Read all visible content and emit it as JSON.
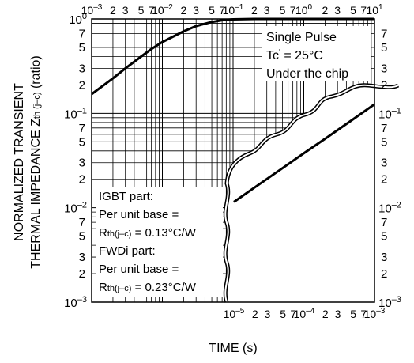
{
  "chart_data": {
    "type": "line",
    "title": "",
    "xlabel": "TIME (s)",
    "ylabel_line1": "NORMALIZED TRANSIENT",
    "ylabel_line2_main": "THERMAL IMPEDANCE  Z",
    "ylabel_line2_sub": "th (j–c)",
    "ylabel_line2_tail": " (ratio)",
    "log_scale": {
      "x": true,
      "y": true
    },
    "grid": true,
    "y_axis": {
      "range": [
        0.001,
        1
      ],
      "decades": [
        {
          "base": "10",
          "exp": "0"
        },
        {
          "base": "10",
          "exp": "–1"
        },
        {
          "base": "10",
          "exp": "–2"
        },
        {
          "base": "10",
          "exp": "–3"
        }
      ],
      "minor_labels": [
        "7",
        "5",
        "3",
        "2"
      ]
    },
    "x_top_axis": {
      "range": [
        0.001,
        10
      ],
      "labels": [
        {
          "text": "10",
          "exp": "–3"
        },
        {
          "text": "2"
        },
        {
          "text": "3"
        },
        {
          "text": "5"
        },
        {
          "text": "7"
        },
        {
          "text": "10",
          "exp": "–2"
        },
        {
          "text": "2"
        },
        {
          "text": "3"
        },
        {
          "text": "5"
        },
        {
          "text": "7"
        },
        {
          "text": "10",
          "exp": "–1"
        },
        {
          "text": "2"
        },
        {
          "text": "3"
        },
        {
          "text": "5"
        },
        {
          "text": "7"
        },
        {
          "text": "10",
          "exp": "0"
        },
        {
          "text": "2"
        },
        {
          "text": "3"
        },
        {
          "text": "5"
        },
        {
          "text": "7"
        },
        {
          "text": "10",
          "exp": "1"
        }
      ]
    },
    "x_bottom_axis": {
      "range": [
        1e-05,
        0.001
      ],
      "labels": [
        {
          "text": "10",
          "exp": "–5"
        },
        {
          "text": "2"
        },
        {
          "text": "3"
        },
        {
          "text": "5"
        },
        {
          "text": "7"
        },
        {
          "text": "10",
          "exp": "–4"
        },
        {
          "text": "2"
        },
        {
          "text": "3"
        },
        {
          "text": "5"
        },
        {
          "text": "7"
        },
        {
          "text": "10",
          "exp": "–3"
        }
      ]
    },
    "series": [
      {
        "axis": "top",
        "x": [
          0.001,
          0.002,
          0.003,
          0.005,
          0.007,
          0.01,
          0.02,
          0.03,
          0.05,
          0.07,
          0.1,
          0.2,
          0.5,
          1,
          2,
          5,
          10
        ],
        "y": [
          0.16,
          0.235,
          0.3,
          0.4,
          0.48,
          0.57,
          0.74,
          0.84,
          0.93,
          0.97,
          0.99,
          1.0,
          1.0,
          1.0,
          1.0,
          1.0,
          1.0
        ]
      },
      {
        "axis": "bottom",
        "x": [
          1e-05,
          2e-05,
          5e-05,
          0.0001,
          0.0002,
          0.0005,
          0.001
        ],
        "y": [
          0.0115,
          0.0165,
          0.0265,
          0.038,
          0.054,
          0.087,
          0.125
        ]
      }
    ],
    "annotations": {
      "top_right": [
        "Single Pulse",
        "Under the chip"
      ],
      "tc_main": "Tc",
      "tc_prime": "'",
      "tc_tail": " = 25°C",
      "igbt_title": "IGBT part:",
      "igbt_base": "Per unit base =",
      "igbt_r_main": "R",
      "igbt_r_sub": "th(j–c)",
      "igbt_r_val": " = 0.13°C/W",
      "fwdi_title": "FWDi part:",
      "fwdi_base": "Per unit base =",
      "fwdi_r_main": "R",
      "fwdi_r_sub": "th(j–c)",
      "fwdi_r_val": " = 0.23°C/W"
    }
  }
}
